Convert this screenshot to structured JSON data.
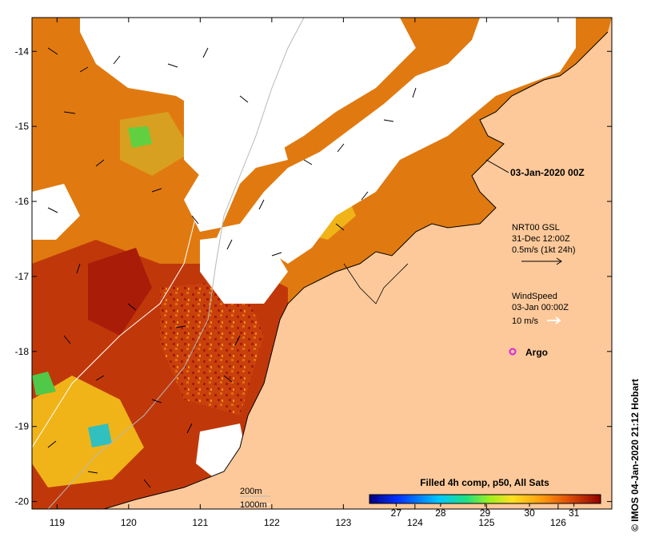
{
  "map": {
    "date_label": "03-Jan-2020 00Z",
    "credit": "© IMOS 04-Jan-2020 21:12 Hobart",
    "lon_ticks": [
      "119",
      "120",
      "121",
      "122",
      "123",
      "124",
      "125",
      "126"
    ],
    "lat_ticks": [
      "-14",
      "-15",
      "-16",
      "-17",
      "-18",
      "-19",
      "-20"
    ],
    "lon_range": [
      118.65,
      126.75
    ],
    "lat_range": [
      -20.1,
      -13.55
    ],
    "current_legend": {
      "line1": "NRT00 GSL",
      "line2": "31-Dec 12:00Z",
      "line3": "0.5m/s (1kt 24h)"
    },
    "wind_legend": {
      "line1": "WindSpeed",
      "line2": "03-Jan 00:00Z",
      "line3": "10 m/s"
    },
    "argo_label": "Argo",
    "bathymetry": {
      "line1": "200m",
      "line2": "1000m"
    },
    "colorbar": {
      "title": "Filled 4h comp, p50, All Sats",
      "ticks": [
        "27",
        "28",
        "29",
        "30",
        "31"
      ],
      "range": [
        26.4,
        31.6
      ]
    },
    "colors": {
      "land": "#fdc99a",
      "warm": "#a81c08",
      "mid": "#e0700f",
      "cool": "#f0b418",
      "cloud": "#ffffff",
      "argo": "#e020e0"
    }
  }
}
